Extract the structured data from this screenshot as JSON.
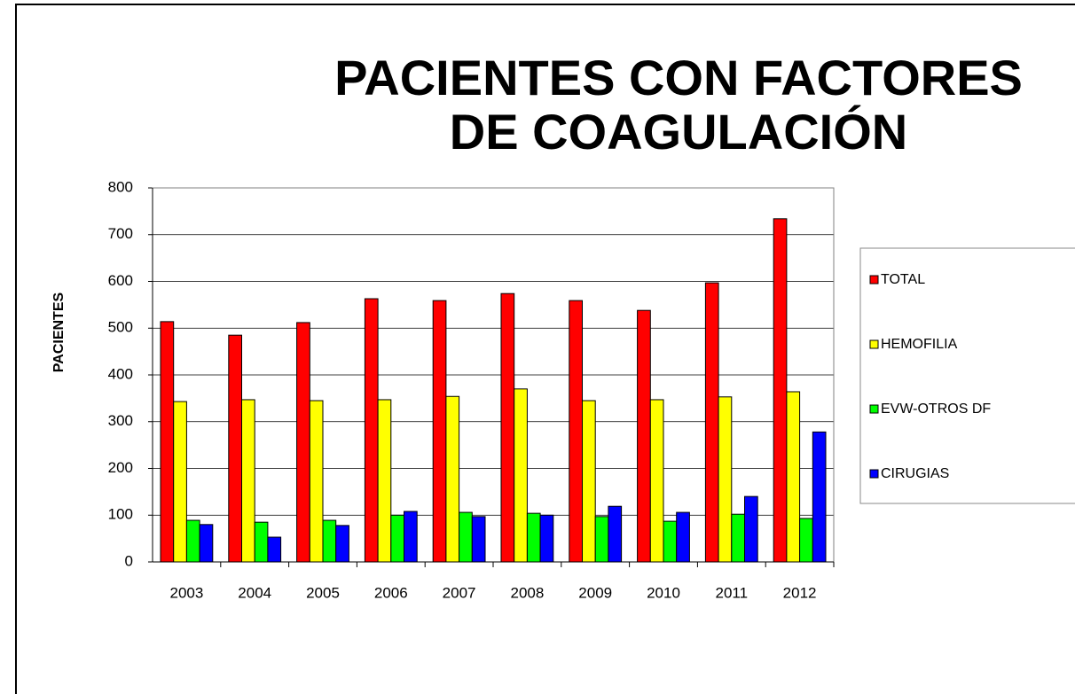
{
  "chart_data": {
    "type": "bar",
    "title_lines": [
      "PACIENTES CON FACTORES",
      "DE COAGULACIÓN"
    ],
    "y_label": "PACIENTES",
    "categories": [
      "2003",
      "2004",
      "2005",
      "2006",
      "2007",
      "2008",
      "2009",
      "2010",
      "2011",
      "2012"
    ],
    "series": [
      {
        "name": "TOTAL",
        "color": "#ff0000",
        "values": [
          514,
          485,
          512,
          563,
          559,
          574,
          559,
          538,
          597,
          734
        ]
      },
      {
        "name": "HEMOFILIA",
        "color": "#ffff00",
        "values": [
          343,
          347,
          345,
          347,
          354,
          370,
          345,
          347,
          353,
          364
        ]
      },
      {
        "name": "EVW-OTROS DF",
        "color": "#00ff00",
        "values": [
          89,
          85,
          89,
          100,
          106,
          104,
          97,
          87,
          102,
          93
        ]
      },
      {
        "name": "CIRUGIAS",
        "color": "#0000ff",
        "values": [
          80,
          53,
          78,
          108,
          97,
          100,
          119,
          106,
          140,
          278
        ]
      }
    ],
    "ylim": [
      0,
      800
    ],
    "yticks": [
      0,
      100,
      200,
      300,
      400,
      500,
      600,
      700,
      800
    ],
    "grid": true,
    "legend": "right"
  }
}
